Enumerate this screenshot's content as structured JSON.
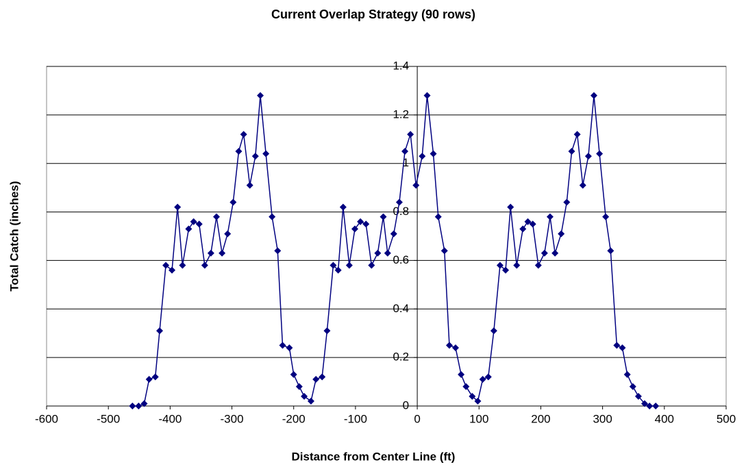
{
  "chart_data": {
    "type": "line",
    "title": "Current Overlap Strategy (90 rows)",
    "x_label": "Distance from Center Line (ft)",
    "y_label": "Total Catch (inches)",
    "x": [
      -461,
      -451,
      -442,
      -434,
      -424,
      -417,
      -407,
      -397,
      -388,
      -380,
      -370,
      -362,
      -353,
      -344,
      -334,
      -325,
      -316,
      -307,
      -298,
      -289,
      -281,
      -271,
      -262,
      -254,
      -245,
      -235,
      -226,
      -218,
      -207,
      -200,
      -191,
      -183,
      -172,
      -164,
      -154,
      -146,
      -136,
      -128,
      -120,
      -110,
      -101,
      -92,
      -83,
      -74,
      -64,
      -55,
      -48,
      -38,
      -29,
      -20,
      -11,
      -2,
      8,
      16,
      26,
      34,
      44,
      52,
      62,
      71,
      79,
      89,
      98,
      106,
      115,
      124,
      134,
      143,
      151,
      161,
      171,
      179,
      187,
      196,
      206,
      215,
      223,
      233,
      242,
      250,
      259,
      268,
      277,
      286,
      295,
      305,
      313,
      323,
      332,
      340,
      349,
      358,
      368,
      376,
      386
    ],
    "series": [
      {
        "color": "#000080",
        "values": [
          0,
          0,
          0.01,
          0.11,
          0.12,
          0.31,
          0.58,
          0.56,
          0.82,
          0.58,
          0.73,
          0.76,
          0.75,
          0.58,
          0.63,
          0.78,
          0.63,
          0.71,
          0.84,
          1.05,
          1.12,
          0.91,
          1.03,
          1.28,
          1.04,
          0.78,
          0.64,
          0.25,
          0.24,
          0.13,
          0.08,
          0.04,
          0.02,
          0.11,
          0.12,
          0.31,
          0.58,
          0.56,
          0.82,
          0.58,
          0.73,
          0.76,
          0.75,
          0.58,
          0.63,
          0.78,
          0.63,
          0.71,
          0.84,
          1.05,
          1.12,
          0.91,
          1.03,
          1.28,
          1.04,
          0.78,
          0.64,
          0.25,
          0.24,
          0.13,
          0.08,
          0.04,
          0.02,
          0.11,
          0.12,
          0.31,
          0.58,
          0.56,
          0.82,
          0.58,
          0.73,
          0.76,
          0.75,
          0.58,
          0.63,
          0.78,
          0.63,
          0.71,
          0.84,
          1.05,
          1.12,
          0.91,
          1.03,
          1.28,
          1.04,
          0.78,
          0.64,
          0.25,
          0.24,
          0.13,
          0.08,
          0.04,
          0.01,
          0,
          0
        ]
      }
    ],
    "xlim": [
      -600,
      500
    ],
    "xticks": [
      -600,
      -500,
      -400,
      -300,
      -200,
      -100,
      0,
      100,
      200,
      300,
      400,
      500
    ],
    "ylim": [
      0,
      1.4
    ],
    "yticks": [
      0,
      0.2,
      0.4,
      0.6,
      0.8,
      1,
      1.2,
      1.4
    ],
    "grid": true
  }
}
